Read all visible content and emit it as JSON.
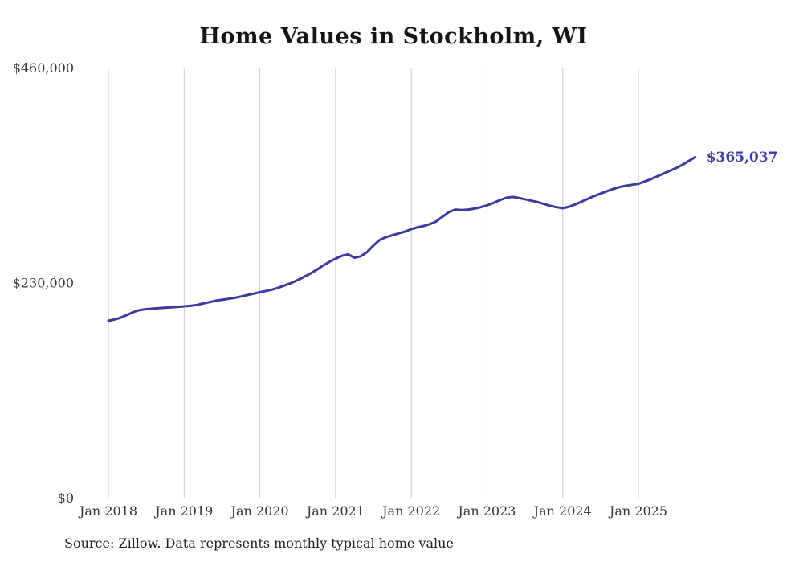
{
  "title": "Home Values in Stockholm, WI",
  "source": "Source: Zillow. Data represents monthly typical home value",
  "chart_data": {
    "type": "line",
    "title": "Home Values in Stockholm, WI",
    "xlabel": "",
    "ylabel": "",
    "ylim": [
      0,
      460000
    ],
    "grid": "vertical-only",
    "legend": "none",
    "line_color": "#3b3a9d",
    "grid_color": "#cccccc",
    "tick_color": "#333333",
    "end_label": "$365,037",
    "y_ticks": [
      {
        "value": 0,
        "label": "$0"
      },
      {
        "value": 230000,
        "label": "$230,000"
      },
      {
        "value": 460000,
        "label": "$460,000"
      }
    ],
    "x_ticks": [
      "Jan 2018",
      "Jan 2019",
      "Jan 2020",
      "Jan 2021",
      "Jan 2022",
      "Jan 2023",
      "Jan 2024",
      "Jan 2025"
    ],
    "x": [
      "2018-01",
      "2018-02",
      "2018-03",
      "2018-04",
      "2018-05",
      "2018-06",
      "2018-07",
      "2018-08",
      "2018-09",
      "2018-10",
      "2018-11",
      "2018-12",
      "2019-01",
      "2019-02",
      "2019-03",
      "2019-04",
      "2019-05",
      "2019-06",
      "2019-07",
      "2019-08",
      "2019-09",
      "2019-10",
      "2019-11",
      "2019-12",
      "2020-01",
      "2020-02",
      "2020-03",
      "2020-04",
      "2020-05",
      "2020-06",
      "2020-07",
      "2020-08",
      "2020-09",
      "2020-10",
      "2020-11",
      "2020-12",
      "2021-01",
      "2021-02",
      "2021-03",
      "2021-04",
      "2021-05",
      "2021-06",
      "2021-07",
      "2021-08",
      "2021-09",
      "2021-10",
      "2021-11",
      "2021-12",
      "2022-01",
      "2022-02",
      "2022-03",
      "2022-04",
      "2022-05",
      "2022-06",
      "2022-07",
      "2022-08",
      "2022-09",
      "2022-10",
      "2022-11",
      "2022-12",
      "2023-01",
      "2023-02",
      "2023-03",
      "2023-04",
      "2023-05",
      "2023-06",
      "2023-07",
      "2023-08",
      "2023-09",
      "2023-10",
      "2023-11",
      "2023-12",
      "2024-01",
      "2024-02",
      "2024-03",
      "2024-04",
      "2024-05",
      "2024-06",
      "2024-07",
      "2024-08",
      "2024-09",
      "2024-10",
      "2024-11",
      "2024-12",
      "2025-01",
      "2025-02",
      "2025-03",
      "2025-04",
      "2025-05",
      "2025-06",
      "2025-07",
      "2025-08",
      "2025-09",
      "2025-10"
    ],
    "values": [
      190000,
      191500,
      193500,
      196500,
      199500,
      201500,
      202500,
      203000,
      203500,
      204000,
      204500,
      205000,
      205500,
      206000,
      207000,
      208500,
      210000,
      211500,
      212500,
      213500,
      214500,
      216000,
      217500,
      219000,
      220500,
      222000,
      223500,
      225500,
      228000,
      230500,
      233500,
      237000,
      240500,
      244500,
      249000,
      253000,
      256500,
      259500,
      261000,
      257500,
      259000,
      263500,
      270500,
      276500,
      279500,
      281500,
      283500,
      285500,
      288000,
      290000,
      291500,
      293500,
      296500,
      301500,
      306500,
      309000,
      308500,
      309000,
      310000,
      311500,
      313500,
      316000,
      319000,
      321500,
      322500,
      321500,
      320000,
      318500,
      317000,
      315000,
      313000,
      311500,
      310500,
      312000,
      314500,
      317500,
      320500,
      323500,
      326000,
      328500,
      331000,
      333000,
      334500,
      335500,
      336500,
      339000,
      341500,
      344500,
      347500,
      350500,
      353500,
      357000,
      361000,
      365037
    ]
  }
}
